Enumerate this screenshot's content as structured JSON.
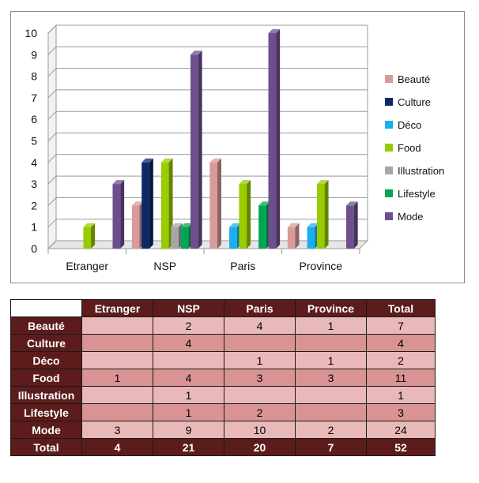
{
  "chart_data": {
    "type": "bar",
    "categories": [
      "Etranger",
      "NSP",
      "Paris",
      "Province"
    ],
    "series": [
      {
        "name": "Beauté",
        "color": "#d99a9a",
        "values": [
          0,
          2,
          4,
          1
        ]
      },
      {
        "name": "Culture",
        "color": "#0b2a66",
        "values": [
          0,
          4,
          0,
          0
        ]
      },
      {
        "name": "Déco",
        "color": "#1ab0ef",
        "values": [
          0,
          0,
          1,
          1
        ]
      },
      {
        "name": "Food",
        "color": "#99cc00",
        "values": [
          1,
          4,
          3,
          3
        ]
      },
      {
        "name": "Illustration",
        "color": "#a6a6a6",
        "values": [
          0,
          1,
          0,
          0
        ]
      },
      {
        "name": "Lifestyle",
        "color": "#00a651",
        "values": [
          0,
          1,
          2,
          0
        ]
      },
      {
        "name": "Mode",
        "color": "#6d4f8f",
        "values": [
          3,
          9,
          10,
          2
        ]
      }
    ],
    "ylim": [
      0,
      10
    ],
    "yticks": [
      "0",
      "1",
      "2",
      "3",
      "4",
      "5",
      "6",
      "7",
      "8",
      "9",
      "10"
    ],
    "grid": true,
    "legend": "right",
    "style": "3d"
  },
  "table": {
    "headers": [
      "Etranger",
      "NSP",
      "Paris",
      "Province",
      "Total"
    ],
    "rows": [
      {
        "label": "Beauté",
        "cells": [
          "",
          "2",
          "4",
          "1",
          "7"
        ]
      },
      {
        "label": "Culture",
        "cells": [
          "",
          "4",
          "",
          "",
          "4"
        ]
      },
      {
        "label": "Déco",
        "cells": [
          "",
          "",
          "1",
          "1",
          "2"
        ]
      },
      {
        "label": "Food",
        "cells": [
          "1",
          "4",
          "3",
          "3",
          "11"
        ]
      },
      {
        "label": "Illustration",
        "cells": [
          "",
          "1",
          "",
          "",
          "1"
        ]
      },
      {
        "label": "Lifestyle",
        "cells": [
          "",
          "1",
          "2",
          "",
          "3"
        ]
      },
      {
        "label": "Mode",
        "cells": [
          "3",
          "9",
          "10",
          "2",
          "24"
        ]
      }
    ],
    "total": {
      "label": "Total",
      "cells": [
        "4",
        "21",
        "20",
        "7",
        "52"
      ]
    }
  }
}
